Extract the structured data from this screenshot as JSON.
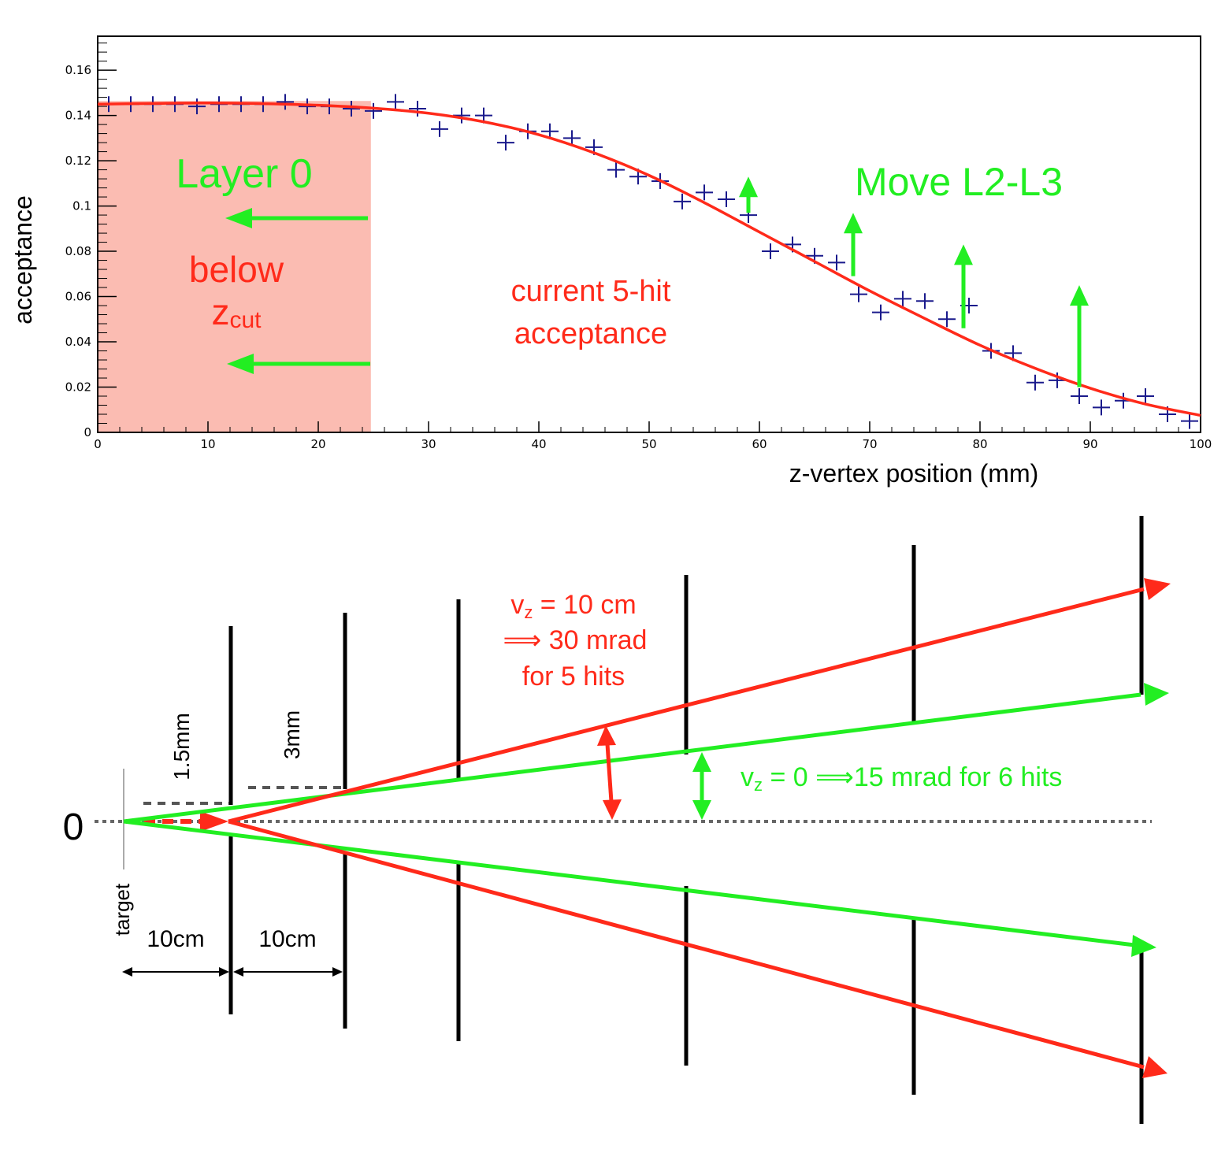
{
  "colors": {
    "fit": "#ff2a1a",
    "points": "#1a1a8c",
    "green": "#22ee22",
    "shade": "#fbbcb2",
    "red": "#ff2a1a",
    "black": "#000000"
  },
  "chart_data": {
    "type": "scatter",
    "xlabel": "z-vertex position (mm)",
    "ylabel": "acceptance",
    "xlim": [
      0,
      100
    ],
    "ylim": [
      0,
      0.175
    ],
    "x_ticks": [
      "0",
      "10",
      "20",
      "30",
      "40",
      "50",
      "60",
      "70",
      "80",
      "90",
      "100"
    ],
    "y_ticks": [
      "0",
      "0.02",
      "0.04",
      "0.06",
      "0.08",
      "0.1",
      "0.12",
      "0.14",
      "0.16"
    ],
    "shaded_region": [
      0,
      24.7
    ],
    "series": [
      {
        "kind": "points",
        "x": [
          1,
          3,
          5,
          7,
          9,
          11,
          13,
          15,
          17,
          19,
          21,
          23,
          25,
          27,
          29,
          31,
          33,
          35,
          37,
          39,
          41,
          43,
          45,
          47,
          49,
          51,
          53,
          55,
          57,
          59,
          61,
          63,
          65,
          67,
          69,
          71,
          73,
          75,
          77,
          79,
          81,
          83,
          85,
          87,
          89,
          91,
          93,
          95,
          97,
          99
        ],
        "y": [
          0.145,
          0.145,
          0.145,
          0.145,
          0.144,
          0.145,
          0.145,
          0.145,
          0.146,
          0.144,
          0.144,
          0.143,
          0.142,
          0.146,
          0.143,
          0.134,
          0.14,
          0.14,
          0.128,
          0.133,
          0.133,
          0.13,
          0.126,
          0.116,
          0.113,
          0.111,
          0.102,
          0.106,
          0.103,
          0.096,
          0.08,
          0.083,
          0.078,
          0.075,
          0.061,
          0.053,
          0.059,
          0.058,
          0.05,
          0.056,
          0.036,
          0.035,
          0.022,
          0.023,
          0.016,
          0.011,
          0.014,
          0.016,
          0.008,
          0.005
        ]
      },
      {
        "kind": "fit",
        "x": [
          0,
          5,
          10,
          15,
          20,
          25,
          30,
          35,
          40,
          45,
          50,
          55,
          60,
          65,
          70,
          75,
          80,
          85,
          90,
          95,
          100
        ],
        "y": [
          0.145,
          0.1453,
          0.1455,
          0.1452,
          0.1445,
          0.1432,
          0.141,
          0.1372,
          0.1315,
          0.1235,
          0.1135,
          0.1015,
          0.0885,
          0.0755,
          0.0625,
          0.0503,
          0.0385,
          0.0283,
          0.0195,
          0.0125,
          0.0075
        ]
      }
    ],
    "arrows_up_x": [
      59,
      68.5,
      78.5,
      89
    ],
    "annotations": {
      "layer0": "Layer 0",
      "below": "below",
      "zcut_main": "z",
      "zcut_sub": "cut",
      "current_line1": "current 5-hit",
      "current_line2": "acceptance",
      "move": "Move L2-L3"
    }
  },
  "diagram": {
    "zero_label": "0",
    "target_label": "target",
    "dim_15mm": "1.5mm",
    "dim_3mm": "3mm",
    "dim_10cm_a": "10cm",
    "dim_10cm_b": "10cm",
    "red_line1_main": "v",
    "red_line1_sub": "z",
    "red_line1_rest": " = 10 cm",
    "red_line2": "⟹ 30 mrad",
    "red_line3": "for 5 hits",
    "green_main": "v",
    "green_sub": "z",
    "green_rest": " = 0 ⟹15 mrad for 6 hits"
  }
}
